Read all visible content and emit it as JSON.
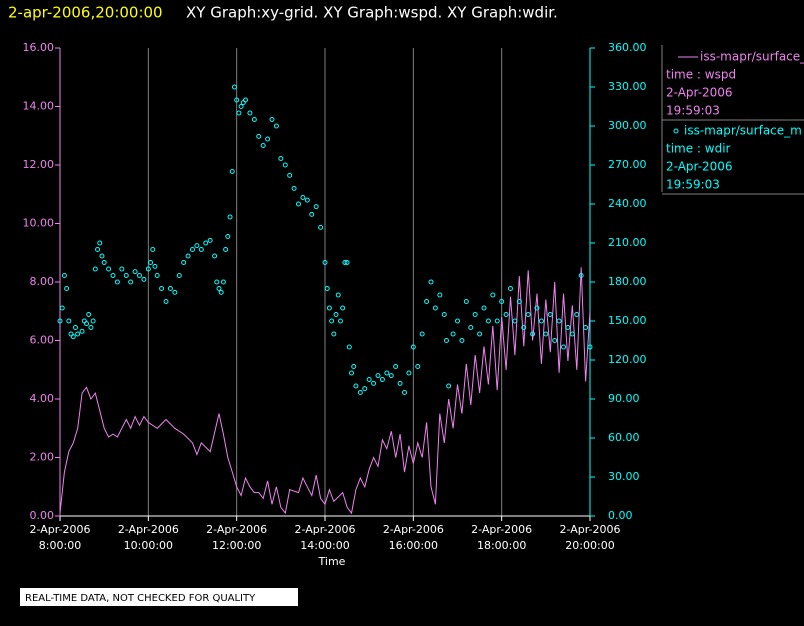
{
  "chart_data": {
    "type": "line",
    "title": "2-apr-2006,20:00:00",
    "subtitle": "XY Graph:xy-grid.  XY Graph:wspd.  XY Graph:wdir.",
    "xlabel": "Time",
    "note": "REAL-TIME DATA, NOT CHECKED FOR QUALITY",
    "grid": "x",
    "xlim": [
      8,
      20
    ],
    "xticks": [
      {
        "value": 8,
        "label": [
          "2-Apr-2006",
          "8:00:00"
        ]
      },
      {
        "value": 10,
        "label": [
          "2-Apr-2006",
          "10:00:00"
        ]
      },
      {
        "value": 12,
        "label": [
          "2-Apr-2006",
          "12:00:00"
        ]
      },
      {
        "value": 14,
        "label": [
          "2-Apr-2006",
          "14:00:00"
        ]
      },
      {
        "value": 16,
        "label": [
          "2-Apr-2006",
          "16:00:00"
        ]
      },
      {
        "value": 18,
        "label": [
          "2-Apr-2006",
          "18:00:00"
        ]
      },
      {
        "value": 20,
        "label": [
          "2-Apr-2006",
          "20:00:00"
        ]
      }
    ],
    "ylim": [
      0,
      16
    ],
    "yticks": [
      {
        "value": 0,
        "label": "0.00"
      },
      {
        "value": 2,
        "label": "2.00"
      },
      {
        "value": 4,
        "label": "4.00"
      },
      {
        "value": 6,
        "label": "6.00"
      },
      {
        "value": 8,
        "label": "8.00"
      },
      {
        "value": 10,
        "label": "10.00"
      },
      {
        "value": 12,
        "label": "12.00"
      },
      {
        "value": 14,
        "label": "14.00"
      },
      {
        "value": 16,
        "label": "16.00"
      }
    ],
    "y2lim": [
      0,
      360
    ],
    "y2ticks": [
      {
        "value": 0,
        "label": "0.00"
      },
      {
        "value": 30,
        "label": "30.00"
      },
      {
        "value": 60,
        "label": "60.00"
      },
      {
        "value": 90,
        "label": "90.00"
      },
      {
        "value": 120,
        "label": "120.00"
      },
      {
        "value": 150,
        "label": "150.00"
      },
      {
        "value": 180,
        "label": "180.00"
      },
      {
        "value": 210,
        "label": "210.00"
      },
      {
        "value": 240,
        "label": "240.00"
      },
      {
        "value": 270,
        "label": "270.00"
      },
      {
        "value": 300,
        "label": "300.00"
      },
      {
        "value": 330,
        "label": "330.00"
      },
      {
        "value": 360,
        "label": "360.00"
      }
    ],
    "series": [
      {
        "name": "iss-mapr/surface_m",
        "type": "line",
        "axis": "y",
        "color": "#ee82ee",
        "variable": "time : wspd",
        "date": "2-Apr-2006",
        "time": "19:59:03",
        "x": [
          8.0,
          8.1,
          8.2,
          8.3,
          8.4,
          8.5,
          8.6,
          8.7,
          8.8,
          8.9,
          9.0,
          9.1,
          9.2,
          9.3,
          9.4,
          9.5,
          9.6,
          9.7,
          9.8,
          9.9,
          10.0,
          10.2,
          10.4,
          10.6,
          10.8,
          11.0,
          11.1,
          11.2,
          11.4,
          11.6,
          11.7,
          11.8,
          11.9,
          12.0,
          12.1,
          12.2,
          12.3,
          12.4,
          12.5,
          12.6,
          12.7,
          12.8,
          12.9,
          13.0,
          13.1,
          13.2,
          13.4,
          13.5,
          13.6,
          13.7,
          13.8,
          13.9,
          14.0,
          14.1,
          14.2,
          14.4,
          14.5,
          14.6,
          14.7,
          14.8,
          14.9,
          15.0,
          15.1,
          15.2,
          15.3,
          15.4,
          15.5,
          15.6,
          15.7,
          15.8,
          15.9,
          16.0,
          16.1,
          16.2,
          16.3,
          16.4,
          16.5,
          16.6,
          16.7,
          16.8,
          16.9,
          17.0,
          17.1,
          17.2,
          17.3,
          17.4,
          17.5,
          17.6,
          17.7,
          17.8,
          17.9,
          18.0,
          18.1,
          18.2,
          18.3,
          18.4,
          18.5,
          18.6,
          18.7,
          18.8,
          18.9,
          19.0,
          19.1,
          19.2,
          19.3,
          19.4,
          19.5,
          19.6,
          19.7,
          19.8,
          19.9,
          20.0
        ],
        "values": [
          0.1,
          1.5,
          2.2,
          2.5,
          3.0,
          4.2,
          4.4,
          4.0,
          4.2,
          3.6,
          3.0,
          2.7,
          2.8,
          2.7,
          3.0,
          3.3,
          3.0,
          3.4,
          3.1,
          3.4,
          3.2,
          3.0,
          3.3,
          3.0,
          2.8,
          2.5,
          2.1,
          2.5,
          2.2,
          3.5,
          2.8,
          2.0,
          1.5,
          1.0,
          0.7,
          1.3,
          1.0,
          0.8,
          0.8,
          0.6,
          1.2,
          0.4,
          1.0,
          0.3,
          0.1,
          0.9,
          0.8,
          1.3,
          1.0,
          0.7,
          1.4,
          0.6,
          0.4,
          0.9,
          0.5,
          0.8,
          0.3,
          0.1,
          0.9,
          1.3,
          1.0,
          1.6,
          2.0,
          1.7,
          2.6,
          2.3,
          2.9,
          2.0,
          2.8,
          1.5,
          2.4,
          1.8,
          2.5,
          2.0,
          3.2,
          1.0,
          0.4,
          3.5,
          2.5,
          4.0,
          3.0,
          4.5,
          3.5,
          5.2,
          3.8,
          5.5,
          4.2,
          5.8,
          4.5,
          6.5,
          4.3,
          6.8,
          5.0,
          7.5,
          5.5,
          8.2,
          5.8,
          8.4,
          6.0,
          7.6,
          5.2,
          7.4,
          5.6,
          8.0,
          4.9,
          7.6,
          5.3,
          7.2,
          5.0,
          8.5,
          4.6,
          7.0
        ]
      },
      {
        "name": "iss-mapr/surface_m",
        "type": "scatter",
        "axis": "y2",
        "color": "#00ffff",
        "variable": "time : wdir",
        "date": "2-Apr-2006",
        "time": "19:59:03",
        "x": [
          8.0,
          8.05,
          8.1,
          8.15,
          8.2,
          8.25,
          8.3,
          8.35,
          8.4,
          8.5,
          8.55,
          8.6,
          8.65,
          8.7,
          8.75,
          8.8,
          8.85,
          8.9,
          8.95,
          9.0,
          9.1,
          9.2,
          9.3,
          9.4,
          9.5,
          9.6,
          9.7,
          9.8,
          9.9,
          10.0,
          10.05,
          10.1,
          10.15,
          10.2,
          10.3,
          10.4,
          10.5,
          10.6,
          10.7,
          10.8,
          10.9,
          11.0,
          11.1,
          11.2,
          11.3,
          11.4,
          11.5,
          11.55,
          11.6,
          11.65,
          11.7,
          11.75,
          11.8,
          11.85,
          11.9,
          11.95,
          12.0,
          12.05,
          12.1,
          12.15,
          12.2,
          12.3,
          12.4,
          12.5,
          12.6,
          12.7,
          12.8,
          12.9,
          13.0,
          13.1,
          13.2,
          13.3,
          13.4,
          13.5,
          13.6,
          13.7,
          13.8,
          13.9,
          14.0,
          14.05,
          14.1,
          14.15,
          14.2,
          14.25,
          14.3,
          14.35,
          14.4,
          14.45,
          14.5,
          14.55,
          14.6,
          14.65,
          14.7,
          14.8,
          14.9,
          15.0,
          15.1,
          15.2,
          15.3,
          15.4,
          15.5,
          15.6,
          15.7,
          15.8,
          15.9,
          16.0,
          16.1,
          16.2,
          16.3,
          16.4,
          16.5,
          16.6,
          16.7,
          16.75,
          16.8,
          16.9,
          17.0,
          17.1,
          17.2,
          17.3,
          17.4,
          17.5,
          17.6,
          17.7,
          17.8,
          17.9,
          18.0,
          18.1,
          18.2,
          18.3,
          18.4,
          18.5,
          18.6,
          18.7,
          18.8,
          18.9,
          19.0,
          19.1,
          19.2,
          19.3,
          19.4,
          19.5,
          19.6,
          19.7,
          19.8,
          19.9,
          20.0
        ],
        "values": [
          150,
          160,
          185,
          175,
          150,
          140,
          138,
          145,
          140,
          142,
          150,
          148,
          155,
          145,
          150,
          190,
          205,
          210,
          200,
          195,
          190,
          185,
          180,
          190,
          185,
          180,
          188,
          185,
          182,
          190,
          195,
          205,
          192,
          185,
          175,
          165,
          175,
          172,
          185,
          195,
          200,
          205,
          208,
          205,
          210,
          212,
          200,
          180,
          175,
          172,
          180,
          205,
          215,
          230,
          265,
          330,
          320,
          310,
          315,
          318,
          320,
          310,
          305,
          292,
          285,
          290,
          305,
          300,
          275,
          270,
          262,
          252,
          240,
          245,
          243,
          232,
          238,
          222,
          195,
          175,
          160,
          150,
          140,
          155,
          170,
          150,
          160,
          195,
          195,
          130,
          110,
          115,
          100,
          95,
          98,
          105,
          102,
          108,
          105,
          110,
          108,
          115,
          102,
          95,
          110,
          130,
          115,
          140,
          165,
          180,
          160,
          170,
          155,
          135,
          100,
          140,
          150,
          135,
          165,
          145,
          155,
          140,
          160,
          150,
          170,
          150,
          165,
          155,
          175,
          150,
          165,
          145,
          155,
          140,
          160,
          150,
          140,
          155,
          135,
          150,
          130,
          145,
          140,
          155,
          185,
          145,
          130
        ]
      }
    ]
  }
}
